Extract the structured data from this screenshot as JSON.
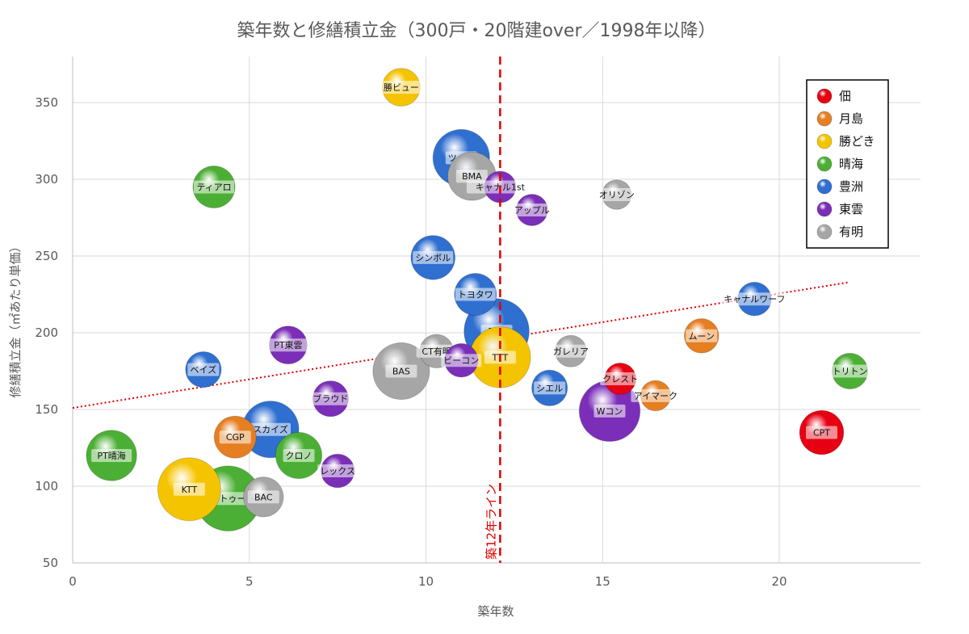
{
  "chart_data": {
    "type": "bubble",
    "title": "築年数と修繕積立金（300戸・20階建over／1998年以降）",
    "xlabel": "築年数",
    "ylabel": "修繕積立金（㎡あたり単価）",
    "xlim": [
      0,
      24
    ],
    "ylim": [
      50,
      380
    ],
    "xticks": [
      0,
      5,
      10,
      15,
      20
    ],
    "yticks": [
      50,
      100,
      150,
      200,
      250,
      300,
      350
    ],
    "grid": true,
    "legend_position": "top-right",
    "categories": [
      {
        "name": "佃",
        "color": "#e60012"
      },
      {
        "name": "月島",
        "color": "#e67e22"
      },
      {
        "name": "勝どき",
        "color": "#f5c400"
      },
      {
        "name": "晴海",
        "color": "#4caf35"
      },
      {
        "name": "豊洲",
        "color": "#2f6fd0"
      },
      {
        "name": "東雲",
        "color": "#7b2fb8"
      },
      {
        "name": "有明",
        "color": "#a6a6a6"
      }
    ],
    "points": [
      {
        "label": "勝ビュー",
        "area": "勝どき",
        "x": 9.3,
        "y": 360,
        "size": 0.9
      },
      {
        "label": "ツイン",
        "area": "豊洲",
        "x": 11.0,
        "y": 314,
        "size": 1.35
      },
      {
        "label": "BMA",
        "area": "有明",
        "x": 11.3,
        "y": 302,
        "size": 1.15
      },
      {
        "label": "キャナル1st",
        "area": "東雲",
        "x": 12.1,
        "y": 295,
        "size": 0.75
      },
      {
        "label": "アップル",
        "area": "東雲",
        "x": 13.0,
        "y": 280,
        "size": 0.75
      },
      {
        "label": "オリゾン",
        "area": "有明",
        "x": 15.4,
        "y": 290,
        "size": 0.7
      },
      {
        "label": "ティアロ",
        "area": "晴海",
        "x": 4.0,
        "y": 295,
        "size": 1.0
      },
      {
        "label": "シンボル",
        "area": "豊洲",
        "x": 10.2,
        "y": 249,
        "size": 1.05
      },
      {
        "label": "トヨタワ",
        "area": "豊洲",
        "x": 11.4,
        "y": 225,
        "size": 1.0
      },
      {
        "label": "キャナルワーフ",
        "area": "豊洲",
        "x": 19.3,
        "y": 222,
        "size": 0.8
      },
      {
        "label": "PCT",
        "area": "豊洲",
        "x": 12.0,
        "y": 201,
        "size": 1.55
      },
      {
        "label": "TTT",
        "area": "勝どき",
        "x": 12.1,
        "y": 184,
        "size": 1.45
      },
      {
        "label": "ムーン",
        "area": "月島",
        "x": 17.8,
        "y": 198,
        "size": 0.82
      },
      {
        "label": "PT東雲",
        "area": "東雲",
        "x": 6.1,
        "y": 192,
        "size": 0.9
      },
      {
        "label": "CT有明",
        "area": "有明",
        "x": 10.3,
        "y": 188,
        "size": 0.8
      },
      {
        "label": "ガレリア",
        "area": "有明",
        "x": 14.1,
        "y": 188,
        "size": 0.75
      },
      {
        "label": "ビーコン",
        "area": "東雲",
        "x": 11.0,
        "y": 182,
        "size": 0.8
      },
      {
        "label": "BAS",
        "area": "有明",
        "x": 9.3,
        "y": 175,
        "size": 1.35
      },
      {
        "label": "ベイズ",
        "area": "豊洲",
        "x": 3.7,
        "y": 176,
        "size": 0.85
      },
      {
        "label": "クレスト",
        "area": "佃",
        "x": 15.5,
        "y": 170,
        "size": 0.75
      },
      {
        "label": "トリトン",
        "area": "晴海",
        "x": 22.0,
        "y": 175,
        "size": 0.85
      },
      {
        "label": "シエル",
        "area": "豊洲",
        "x": 13.5,
        "y": 164,
        "size": 0.85
      },
      {
        "label": "アイマーク",
        "area": "月島",
        "x": 16.5,
        "y": 159,
        "size": 0.72
      },
      {
        "label": "ブラウド",
        "area": "東雲",
        "x": 7.3,
        "y": 157,
        "size": 0.85
      },
      {
        "label": "Wコン",
        "area": "東雲",
        "x": 15.2,
        "y": 149,
        "size": 1.45
      },
      {
        "label": "スカイズ",
        "area": "豊洲",
        "x": 5.6,
        "y": 137,
        "size": 1.35
      },
      {
        "label": "CPT",
        "area": "佃",
        "x": 21.2,
        "y": 135,
        "size": 1.05
      },
      {
        "label": "CGP",
        "area": "月島",
        "x": 4.6,
        "y": 132,
        "size": 1.0
      },
      {
        "label": "クロノ",
        "area": "晴海",
        "x": 6.4,
        "y": 120,
        "size": 1.1
      },
      {
        "label": "PT晴海",
        "area": "晴海",
        "x": 1.1,
        "y": 120,
        "size": 1.2
      },
      {
        "label": "レックス",
        "area": "東雲",
        "x": 7.5,
        "y": 110,
        "size": 0.8
      },
      {
        "label": "ドゥトゥール",
        "area": "晴海",
        "x": 4.4,
        "y": 92,
        "size": 1.55
      },
      {
        "label": "KTT",
        "area": "勝どき",
        "x": 3.3,
        "y": 98,
        "size": 1.5
      },
      {
        "label": "BAC",
        "area": "有明",
        "x": 5.4,
        "y": 93,
        "size": 0.95
      }
    ],
    "trendline": {
      "type": "linear",
      "x": [
        0,
        22
      ],
      "y": [
        151,
        233
      ],
      "color": "#e00000",
      "style": "dotted"
    },
    "reference_line": {
      "x": 12.1,
      "label": "築12年ライン",
      "color": "#e00000",
      "style": "dashed"
    }
  }
}
